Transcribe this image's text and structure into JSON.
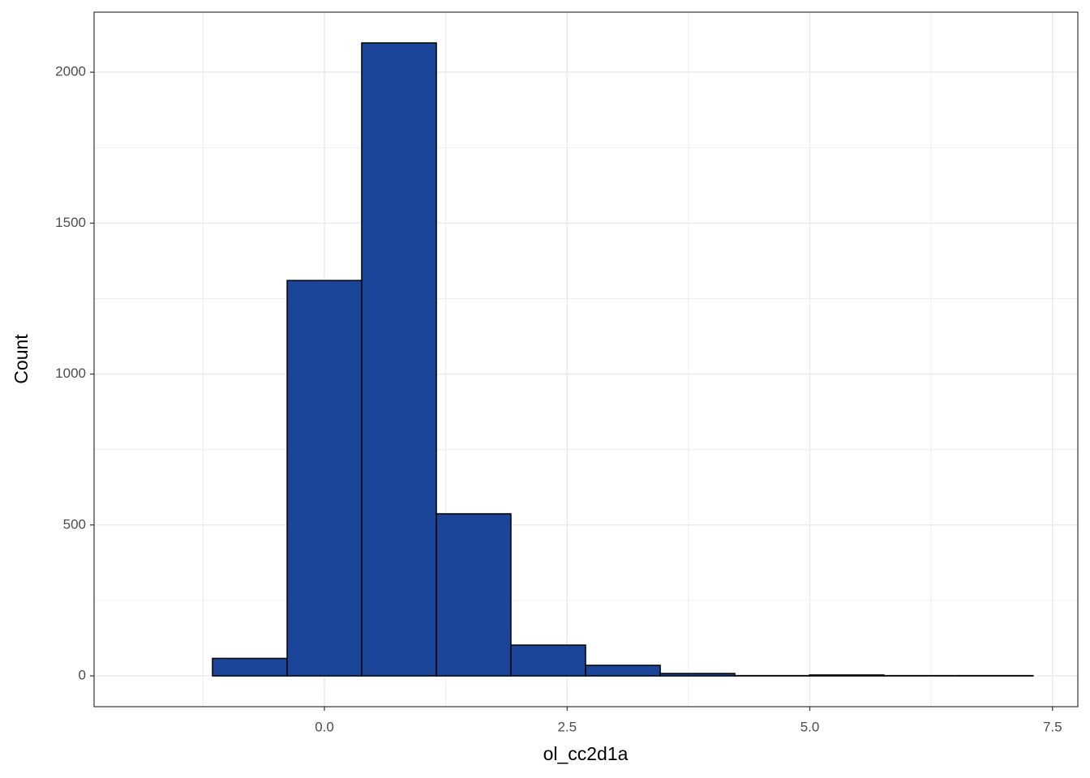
{
  "chart_data": {
    "type": "histogram",
    "x_label": "ol_cc2d1a",
    "y_label": "Count",
    "bins": [
      -1.921,
      -1.153,
      -0.384,
      0.384,
      1.153,
      1.921,
      2.69,
      3.459,
      4.227,
      4.996,
      5.764,
      6.533,
      7.3
    ],
    "values": [
      0,
      58,
      1310,
      2097,
      537,
      102,
      35,
      8,
      1,
      3,
      1,
      1
    ],
    "color": "#1a4599",
    "edge_color": "#000000",
    "xlim": [
      -2.373,
      7.761
    ],
    "ylim": [
      -102,
      2199
    ],
    "xticks": [
      {
        "value": 0,
        "label": "0.0"
      },
      2.5,
      {
        "value": 5,
        "label": "5.0"
      },
      7.5
    ],
    "yticks": [
      0,
      500,
      1000,
      1500,
      2000
    ],
    "x_minor_grid": [
      -1.25,
      1.25,
      3.75,
      6.25
    ],
    "y_minor_grid": [
      250,
      750,
      1250,
      1750
    ],
    "grid": true
  }
}
